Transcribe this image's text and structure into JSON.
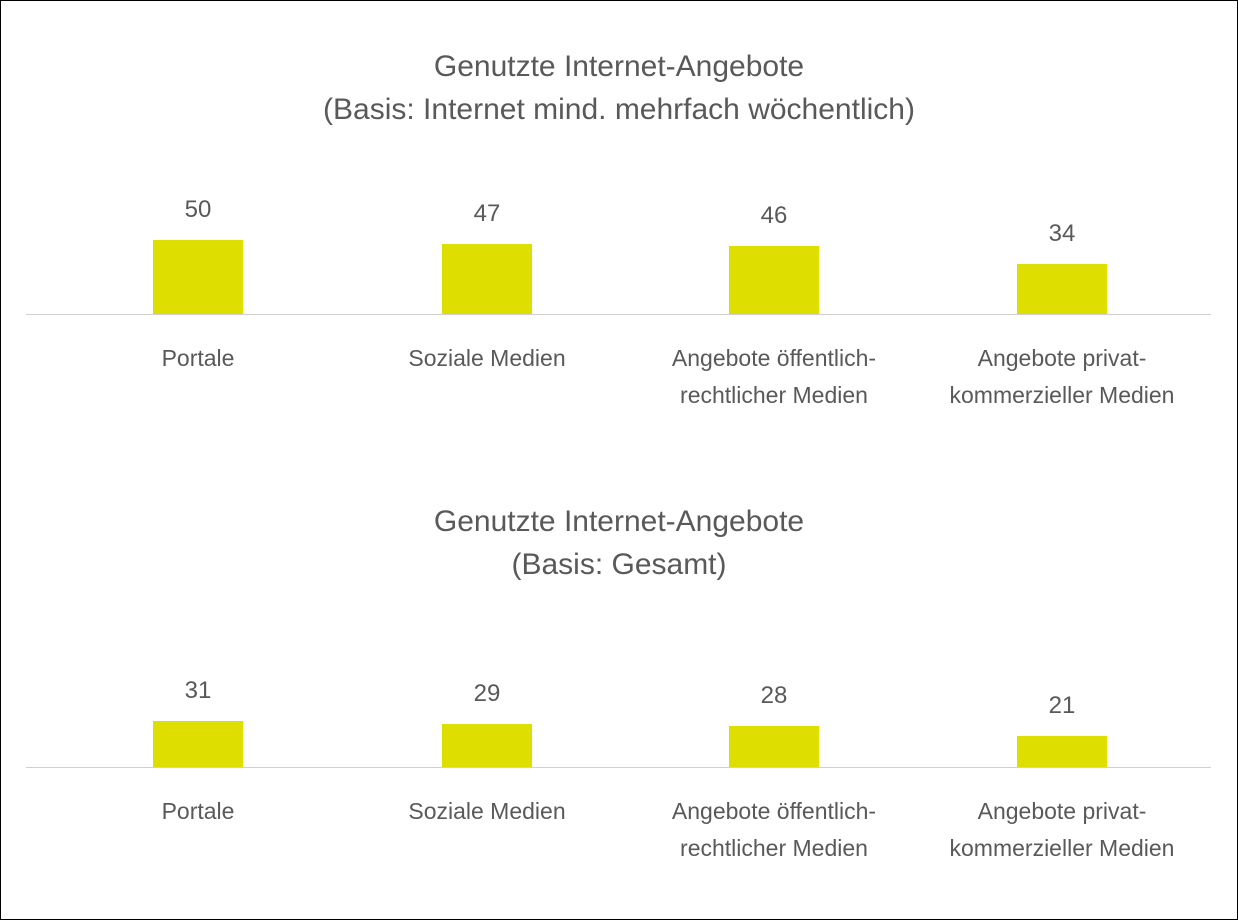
{
  "chart_data": [
    {
      "type": "bar",
      "title": "Genutzte Internet-Angebote",
      "subtitle": "(Basis: Internet mind. mehrfach wöchentlich)",
      "categories": [
        "Portale",
        "Soziale Medien",
        "Angebote öffentlich-rechtlicher Medien",
        "Angebote privat-kommerzieller Medien"
      ],
      "values": [
        50,
        47,
        46,
        34
      ],
      "color": "#dede00"
    },
    {
      "type": "bar",
      "title": "Genutzte Internet-Angebote",
      "subtitle": "(Basis: Gesamt)",
      "categories": [
        "Portale",
        "Soziale Medien",
        "Angebote öffentlich-rechtlicher Medien",
        "Angebote privat-kommerzieller Medien"
      ],
      "values": [
        31,
        29,
        28,
        21
      ],
      "color": "#dede00"
    }
  ]
}
